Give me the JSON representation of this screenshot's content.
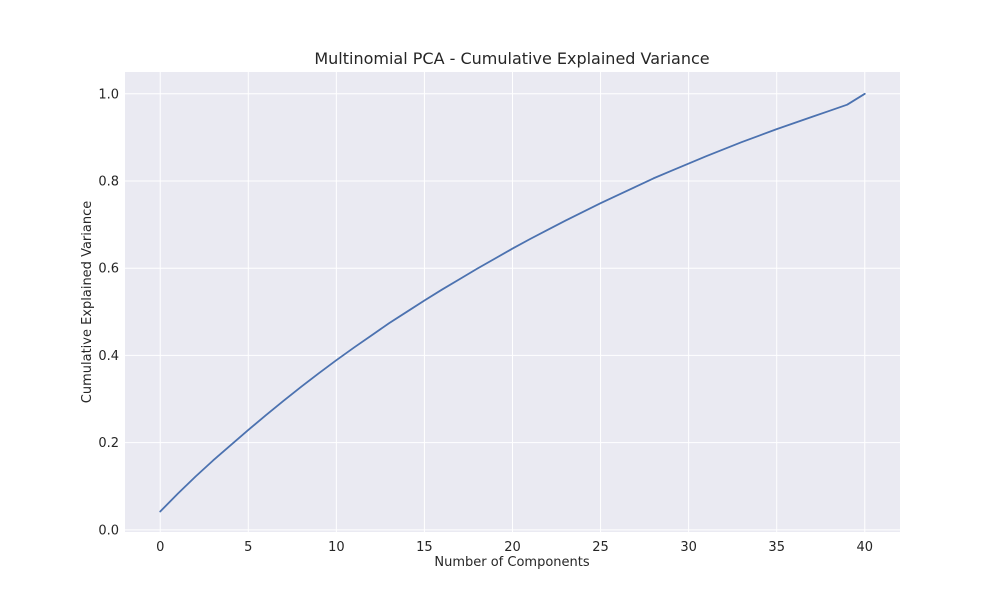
{
  "chart_data": {
    "type": "line",
    "title": "Multinomial PCA - Cumulative Explained Variance",
    "xlabel": "Number of Components",
    "ylabel": "Cumulative Explained Variance",
    "xlim": [
      -2,
      42
    ],
    "ylim": [
      -0.005,
      1.05
    ],
    "grid": true,
    "x_ticks": [
      0,
      5,
      10,
      15,
      20,
      25,
      30,
      35,
      40
    ],
    "x_tick_labels": [
      "0",
      "5",
      "10",
      "15",
      "20",
      "25",
      "30",
      "35",
      "40"
    ],
    "y_ticks": [
      0.0,
      0.2,
      0.4,
      0.6,
      0.8,
      1.0
    ],
    "y_tick_labels": [
      "0.0",
      "0.2",
      "0.4",
      "0.6",
      "0.8",
      "1.0"
    ],
    "series": [
      {
        "color": "#4c72b0",
        "x": [
          0,
          1,
          2,
          3,
          4,
          5,
          6,
          7,
          8,
          9,
          10,
          11,
          12,
          13,
          14,
          15,
          16,
          17,
          18,
          19,
          20,
          21,
          22,
          23,
          24,
          25,
          26,
          27,
          28,
          29,
          30,
          31,
          32,
          33,
          34,
          35,
          36,
          37,
          38,
          39,
          40
        ],
        "values": [
          0.042,
          0.083,
          0.122,
          0.159,
          0.194,
          0.229,
          0.263,
          0.296,
          0.328,
          0.359,
          0.389,
          0.418,
          0.446,
          0.474,
          0.5,
          0.526,
          0.551,
          0.575,
          0.599,
          0.622,
          0.645,
          0.667,
          0.688,
          0.709,
          0.729,
          0.749,
          0.768,
          0.787,
          0.806,
          0.823,
          0.84,
          0.857,
          0.873,
          0.889,
          0.904,
          0.919,
          0.933,
          0.947,
          0.961,
          0.975,
          1.0
        ]
      }
    ]
  }
}
